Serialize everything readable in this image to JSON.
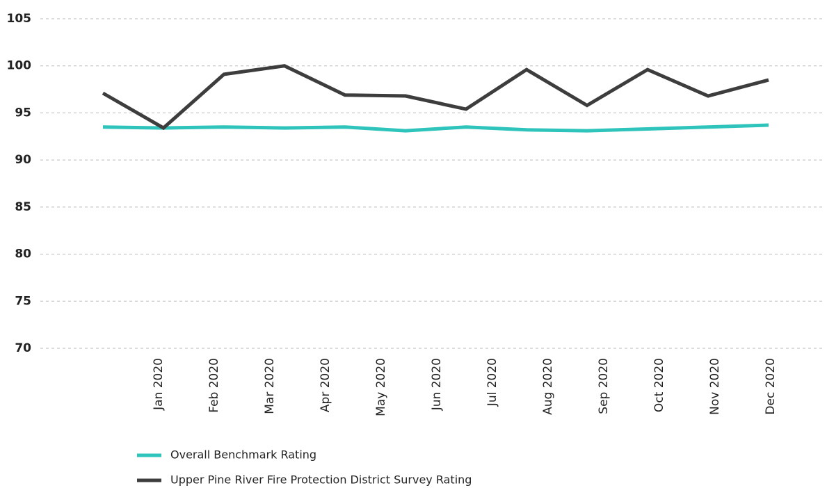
{
  "chart_data": {
    "type": "line",
    "categories": [
      "Jan 2020",
      "Feb 2020",
      "Mar 2020",
      "Apr 2020",
      "May 2020",
      "Jun 2020",
      "Jul 2020",
      "Aug 2020",
      "Sep 2020",
      "Oct 2020",
      "Nov 2020",
      "Dec 2020"
    ],
    "series": [
      {
        "name": "Overall Benchmark Rating",
        "color": "#2ec4bc",
        "values": [
          93.5,
          93.4,
          93.5,
          93.4,
          93.5,
          93.1,
          93.5,
          93.2,
          93.1,
          93.3,
          93.5,
          93.7
        ]
      },
      {
        "name": "Upper Pine River Fire Protection District Survey Rating",
        "color": "#3d3d3d",
        "values": [
          97.1,
          93.4,
          99.1,
          100.0,
          96.9,
          96.8,
          95.4,
          99.6,
          95.8,
          99.6,
          96.8,
          98.5
        ]
      }
    ],
    "ylim": [
      70,
      105
    ],
    "yticks": [
      70,
      75,
      80,
      85,
      90,
      95,
      100,
      105
    ],
    "grid": true
  }
}
